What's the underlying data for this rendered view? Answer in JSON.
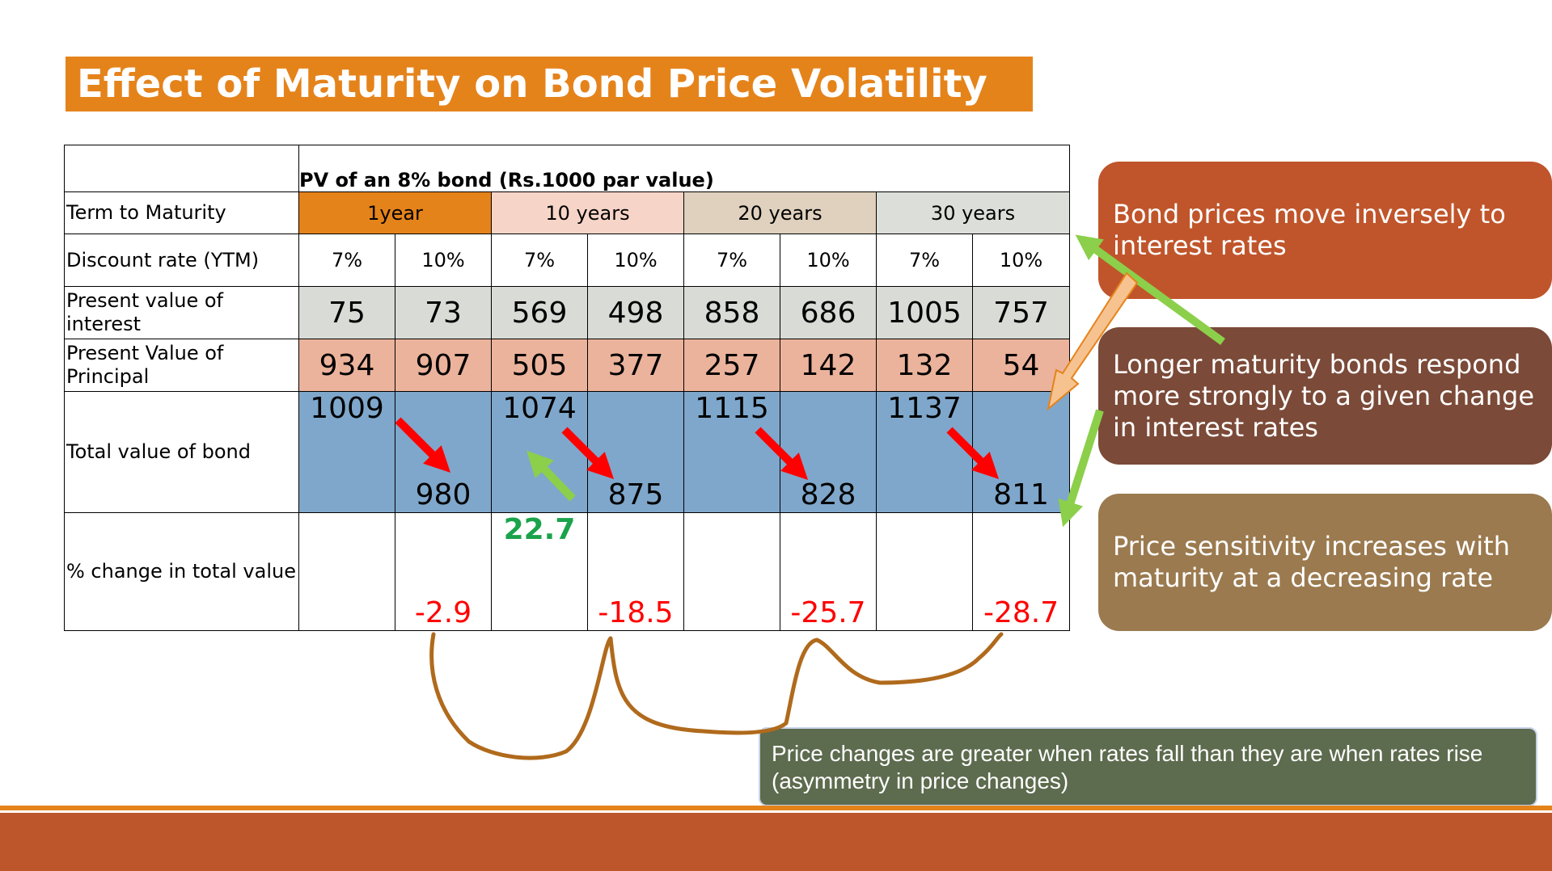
{
  "title": "Effect of Maturity on Bond Price Volatility",
  "table": {
    "header": "PV of an 8% bond (Rs.1000 par value)",
    "row_labels": {
      "term": "Term to Maturity",
      "rate": "Discount rate (YTM)",
      "interest": "Present value of interest",
      "principal": "Present Value of Principal",
      "total": "Total value of bond",
      "pct": "% change in total value"
    },
    "terms": [
      "1year",
      "10 years",
      "20 years",
      "30 years"
    ],
    "rates": [
      "7%",
      "10%",
      "7%",
      "10%",
      "7%",
      "10%",
      "7%",
      "10%"
    ],
    "interest": [
      "75",
      "73",
      "569",
      "498",
      "858",
      "686",
      "1005",
      "757"
    ],
    "principal": [
      "934",
      "907",
      "505",
      "377",
      "257",
      "142",
      "132",
      "54"
    ],
    "total": [
      "1009",
      "980",
      "1074",
      "875",
      "1115",
      "828",
      "1137",
      "811"
    ],
    "pct_change_decrease": [
      "-2.9",
      "-18.5",
      "-25.7",
      "-28.7"
    ],
    "pct_change_increase": "22.7"
  },
  "callouts": [
    "Bond prices move inversely to interest rates",
    "Longer maturity bonds respond more strongly to a given change in interest rates",
    "Price sensitivity increases with maturity at a decreasing rate"
  ],
  "note": "Price changes are greater when rates fall than they are when rates rise (asymmetry in price changes)",
  "colors": {
    "accent_orange": "#e5831b",
    "footer": "#bd572b",
    "total_row": "#7fa7cb",
    "principal_row": "#ebb39c",
    "interest_row": "#d9dcd6",
    "negative": "#ff0000",
    "positive": "#1aa34a",
    "arrow_red": "#ff0000",
    "arrow_green": "#8ccf4a",
    "curve_brown": "#b06a1c"
  }
}
